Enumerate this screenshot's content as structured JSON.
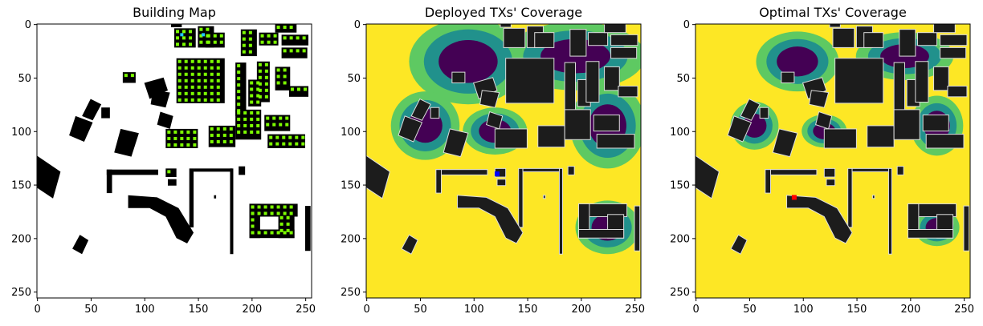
{
  "chart_data": [
    {
      "type": "heatmap",
      "title": "Building Map",
      "xlabel": "",
      "ylabel": "",
      "xlim": [
        0,
        255
      ],
      "ylim": [
        255,
        0
      ],
      "x_ticks": [
        0,
        50,
        100,
        150,
        200,
        250
      ],
      "y_ticks": [
        0,
        50,
        100,
        150,
        200,
        250
      ],
      "colors": {
        "background": "#ffffff",
        "building": "#000000",
        "grid_points": "#7cfc00",
        "tx_points": "#1ec8ff"
      }
    },
    {
      "type": "heatmap",
      "title": "Deployed TXs' Coverage",
      "xlabel": "",
      "ylabel": "",
      "xlim": [
        0,
        255
      ],
      "ylim": [
        255,
        0
      ],
      "x_ticks": [
        0,
        50,
        100,
        150,
        200,
        250
      ],
      "y_ticks": [
        0,
        50,
        100,
        150,
        200,
        250
      ],
      "tx_marker": {
        "x": 122,
        "y": 140,
        "color": "#0000ff"
      },
      "colors": {
        "high": "#fde725",
        "mid_high": "#5ec962",
        "mid_low": "#21918c",
        "low": "#440154",
        "building": "#1c1c1c"
      }
    },
    {
      "type": "heatmap",
      "title": "Optimal TXs' Coverage",
      "xlabel": "",
      "ylabel": "",
      "xlim": [
        0,
        255
      ],
      "ylim": [
        255,
        0
      ],
      "x_ticks": [
        0,
        50,
        100,
        150,
        200,
        250
      ],
      "y_ticks": [
        0,
        50,
        100,
        150,
        200,
        250
      ],
      "tx_marker": {
        "x": 92,
        "y": 162,
        "color": "#ff0000"
      },
      "colors": {
        "high": "#fde725",
        "mid_high": "#5ec962",
        "mid_low": "#21918c",
        "low": "#440154",
        "building": "#1c1c1c"
      }
    }
  ]
}
